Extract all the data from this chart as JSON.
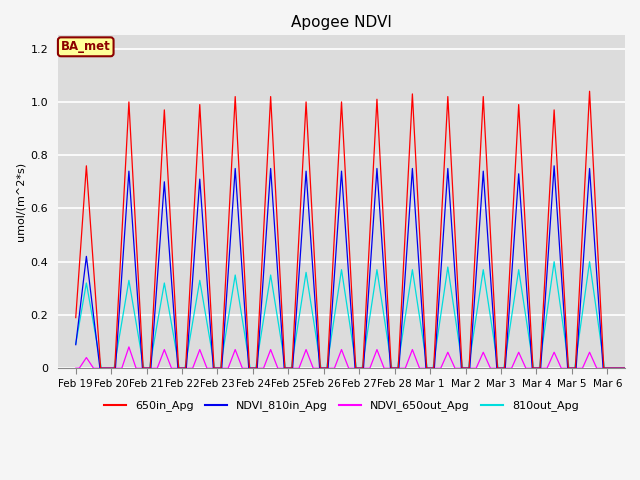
{
  "title": "Apogee NDVI",
  "ylabel": "umol/(m^2*s)",
  "ylim": [
    0,
    1.25
  ],
  "colors": {
    "650in_Apg": "#FF0000",
    "NDVI_810in_Apg": "#0000EE",
    "NDVI_650out_Apg": "#FF00FF",
    "810out_Apg": "#00DDDD"
  },
  "annotation_text": "BA_met",
  "annotation_bg": "#FFFF99",
  "annotation_border": "#8B0000",
  "plot_bg_color": "#DCDCDC",
  "fig_bg_color": "#F5F5F5",
  "tick_dates": [
    "Feb 19",
    "Feb 20",
    "Feb 21",
    "Feb 22",
    "Feb 23",
    "Feb 24",
    "Feb 25",
    "Feb 26",
    "Feb 27",
    "Feb 28",
    "Mar 1",
    "Mar 2",
    "Mar 3",
    "Mar 4",
    "Mar 5",
    "Mar 6"
  ],
  "tick_positions": [
    0,
    1,
    2,
    3,
    4,
    5,
    6,
    7,
    8,
    9,
    10,
    11,
    12,
    13,
    14,
    15
  ],
  "peak_positions": [
    0.3,
    1.5,
    2.5,
    3.5,
    4.5,
    5.5,
    6.5,
    7.5,
    8.5,
    9.5,
    10.5,
    11.5,
    12.5,
    13.5,
    14.5
  ],
  "peak_heights_red": [
    0.76,
    1.0,
    0.97,
    0.99,
    1.02,
    1.02,
    1.0,
    1.0,
    1.01,
    1.03,
    1.02,
    1.02,
    0.99,
    0.97,
    1.04
  ],
  "peak_heights_blue": [
    0.42,
    0.74,
    0.7,
    0.71,
    0.75,
    0.75,
    0.74,
    0.74,
    0.75,
    0.75,
    0.75,
    0.74,
    0.73,
    0.76,
    0.75
  ],
  "peak_heights_cyan": [
    0.32,
    0.33,
    0.32,
    0.33,
    0.35,
    0.35,
    0.36,
    0.37,
    0.37,
    0.37,
    0.38,
    0.37,
    0.37,
    0.4,
    0.4
  ],
  "peak_heights_magenta": [
    0.04,
    0.08,
    0.07,
    0.07,
    0.07,
    0.07,
    0.07,
    0.07,
    0.07,
    0.07,
    0.06,
    0.06,
    0.06,
    0.06,
    0.06
  ],
  "grid_color": "#FFFFFF",
  "title_fontsize": 11,
  "tick_fontsize": 7.5,
  "ylabel_fontsize": 8,
  "legend_fontsize": 8
}
